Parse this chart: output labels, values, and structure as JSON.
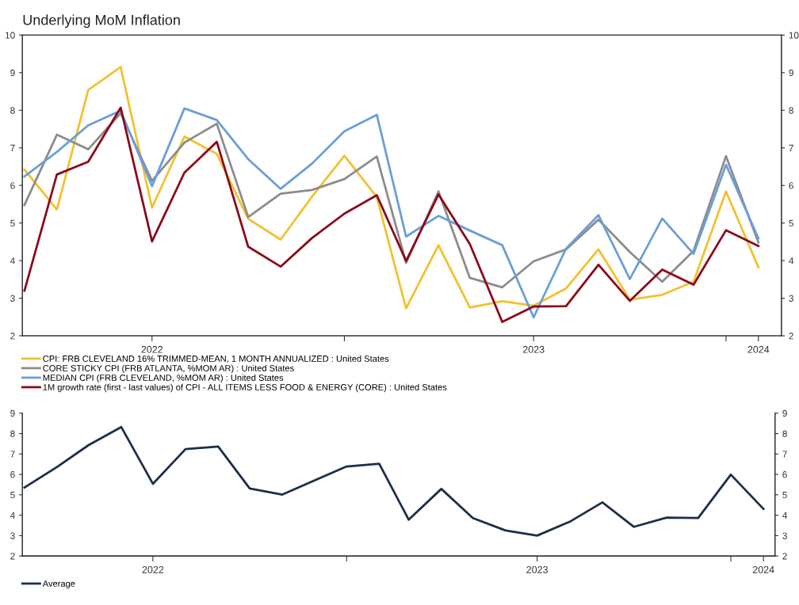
{
  "chart_data": [
    {
      "type": "line",
      "title": "Underlying MoM Inflation",
      "x": [
        "2022-03",
        "2022-04",
        "2022-05",
        "2022-06",
        "2022-07",
        "2022-08",
        "2022-09",
        "2022-10",
        "2022-11",
        "2022-12",
        "2023-01",
        "2023-02",
        "2023-03",
        "2023-04",
        "2023-05",
        "2023-06",
        "2023-07",
        "2023-08",
        "2023-09",
        "2023-10",
        "2023-11",
        "2023-12",
        "2024-01",
        "2024-02"
      ],
      "series": [
        {
          "name": "CPI: FRB CLEVELAND 16% TRIMMED-MEAN, 1 MONTH ANNUALIZED : United States",
          "color": "#f2c12e",
          "values": [
            6.42,
            5.36,
            8.54,
            9.15,
            5.41,
            7.3,
            6.84,
            5.11,
            4.56,
            5.7,
            6.79,
            5.69,
            2.73,
            4.41,
            2.75,
            2.92,
            2.8,
            3.26,
            4.3,
            2.96,
            3.09,
            3.44,
            5.84,
            3.82
          ]
        },
        {
          "name": "CORE STICKY CPI (FRB ATLANTA, %MOM AR) : United States",
          "color": "#8c8c8c",
          "values": [
            5.48,
            7.35,
            6.96,
            7.92,
            6.12,
            7.14,
            7.64,
            5.16,
            5.78,
            5.88,
            6.17,
            6.77,
            3.94,
            5.84,
            3.54,
            3.29,
            3.98,
            4.3,
            5.09,
            4.23,
            3.44,
            4.26,
            6.78,
            4.48
          ]
        },
        {
          "name": "MEDIAN CPI (FRB CLEVELAND, %MOM AR) : United States",
          "color": "#6a9fd8",
          "values": [
            6.24,
            6.89,
            7.6,
            7.99,
            5.98,
            8.05,
            7.74,
            6.7,
            5.91,
            6.58,
            7.44,
            7.88,
            4.64,
            5.19,
            4.8,
            4.41,
            2.49,
            4.32,
            5.21,
            3.51,
            5.12,
            4.18,
            6.55,
            4.59
          ]
        },
        {
          "name": "1M growth rate (first - last values) of CPI - ALL ITEMS LESS FOOD & ENERGY (CORE) : United States",
          "color": "#8b0a1a",
          "values": [
            3.2,
            6.29,
            6.63,
            8.07,
            4.51,
            6.34,
            7.16,
            4.37,
            3.84,
            4.6,
            5.25,
            5.74,
            3.99,
            5.76,
            4.44,
            2.37,
            2.78,
            2.79,
            3.89,
            2.93,
            3.76,
            3.36,
            4.81,
            4.39
          ]
        }
      ],
      "xlim": [
        "2022-02-27",
        "2024-02-23"
      ],
      "xticks": [
        {
          "value": "2022-07-01",
          "label": "2022"
        },
        {
          "value": "2023-01-01",
          "label": null
        },
        {
          "value": "2023-07-01",
          "label": "2023"
        },
        {
          "value": "2024-01-01",
          "label": null
        },
        {
          "value": "2024-02-01",
          "label": "2024"
        }
      ],
      "ylim": [
        2,
        10
      ],
      "yticks": [
        2,
        3,
        4,
        5,
        6,
        7,
        8,
        9,
        10
      ],
      "y2lim": [
        2,
        10
      ],
      "y2ticks": [
        2,
        3,
        4,
        5,
        6,
        7,
        8,
        9,
        10
      ],
      "grid": false,
      "legend": "bottom",
      "marker": "none",
      "line_style": "solid"
    },
    {
      "type": "line",
      "x": [
        "2022-03",
        "2022-04",
        "2022-05",
        "2022-06",
        "2022-07",
        "2022-08",
        "2022-09",
        "2022-10",
        "2022-11",
        "2022-12",
        "2023-01",
        "2023-02",
        "2023-03",
        "2023-04",
        "2023-05",
        "2023-06",
        "2023-07",
        "2023-08",
        "2023-09",
        "2023-10",
        "2023-11",
        "2023-12",
        "2024-01",
        "2024-02"
      ],
      "series": [
        {
          "name": "Average",
          "color": "#1c2e4a",
          "values": [
            5.36,
            6.37,
            7.44,
            8.32,
            5.54,
            7.24,
            7.37,
            5.31,
            5.01,
            5.69,
            6.39,
            6.52,
            3.78,
            5.29,
            3.86,
            3.25,
            3.0,
            3.68,
            4.63,
            3.43,
            3.88,
            3.86,
            5.99,
            4.31
          ]
        }
      ],
      "xlim": [
        "2022-02-27",
        "2024-02-12"
      ],
      "xticks": [
        {
          "value": "2022-07-01",
          "label": "2022"
        },
        {
          "value": "2023-01-01",
          "label": null
        },
        {
          "value": "2023-07-01",
          "label": "2023"
        },
        {
          "value": "2024-01-01",
          "label": null
        },
        {
          "value": "2024-02-01",
          "label": "2024"
        }
      ],
      "ylim": [
        2,
        9
      ],
      "yticks": [
        2,
        3,
        4,
        5,
        6,
        7,
        8,
        9
      ],
      "y2lim": [
        2,
        9
      ],
      "y2ticks": [
        2,
        3,
        4,
        5,
        6,
        7,
        8,
        9
      ],
      "grid": false,
      "legend": "bottom",
      "marker": "none",
      "line_style": "solid"
    }
  ]
}
